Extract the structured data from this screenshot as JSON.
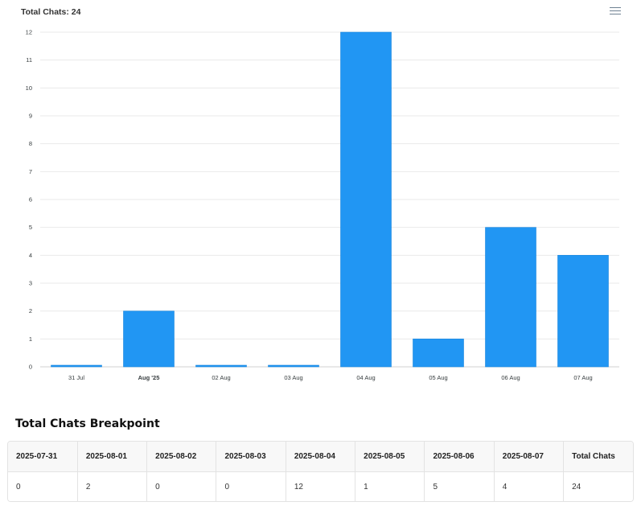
{
  "chart": {
    "title": "Total Chats: 24",
    "menu_icon": "hamburger-menu-icon"
  },
  "chart_data": {
    "type": "bar",
    "title": "Total Chats: 24",
    "categories": [
      "31 Jul",
      "Aug '25",
      "02 Aug",
      "03 Aug",
      "04 Aug",
      "05 Aug",
      "06 Aug",
      "07 Aug"
    ],
    "bold_categories": [
      "Aug '25"
    ],
    "values": [
      0,
      2,
      0,
      0,
      12,
      1,
      5,
      4
    ],
    "ylim": [
      0,
      12
    ],
    "yticks": [
      0,
      1,
      2,
      3,
      4,
      5,
      6,
      7,
      8,
      9,
      10,
      11,
      12
    ],
    "grid": true,
    "bar_color": "#2196f3",
    "xlabel": "",
    "ylabel": ""
  },
  "breakpoint": {
    "title": "Total Chats Breakpoint",
    "headers": [
      "2025-07-31",
      "2025-08-01",
      "2025-08-02",
      "2025-08-03",
      "2025-08-04",
      "2025-08-05",
      "2025-08-06",
      "2025-08-07",
      "Total Chats"
    ],
    "values": [
      "0",
      "2",
      "0",
      "0",
      "12",
      "1",
      "5",
      "4",
      "24"
    ]
  }
}
